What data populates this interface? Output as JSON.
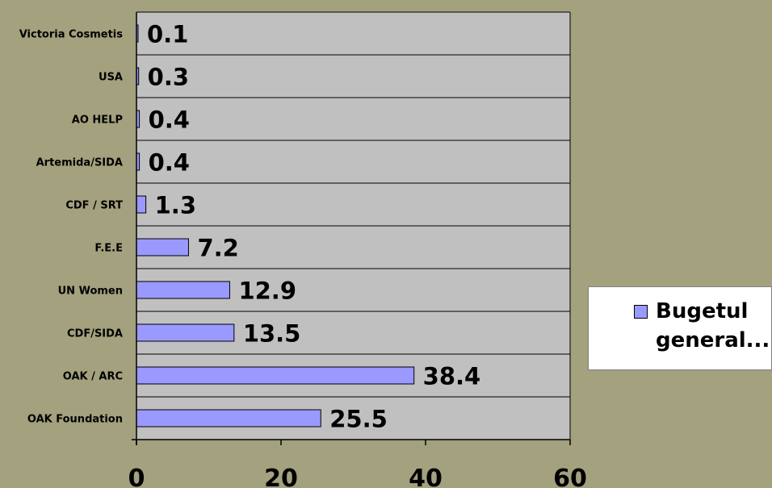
{
  "chart_data": {
    "type": "bar",
    "orientation": "horizontal",
    "categories": [
      "Victoria Cosmetis",
      "USA",
      "AO HELP",
      "Artemida/SIDA",
      "CDF / SRT",
      "F.E.E",
      "UN Women",
      "CDF/SIDA",
      "OAK / ARC",
      "OAK Foundation"
    ],
    "series": [
      {
        "name": "Bugetul general...",
        "values": [
          0.1,
          0.3,
          0.4,
          0.4,
          1.3,
          7.2,
          12.9,
          13.5,
          38.4,
          25.5
        ],
        "labels": [
          "0.1",
          "0.3",
          "0.4",
          "0.4",
          "1.3",
          "7.2",
          "12.9",
          "13.5",
          "38.4",
          "25.5"
        ],
        "color": "#9999ff"
      }
    ],
    "xlim": [
      0,
      60
    ],
    "xticks": [
      "0",
      "20",
      "40",
      "60"
    ],
    "grid": true,
    "legend_position": "right",
    "plot_background": "#c0c0c0",
    "page_background": "#a3a17e"
  }
}
